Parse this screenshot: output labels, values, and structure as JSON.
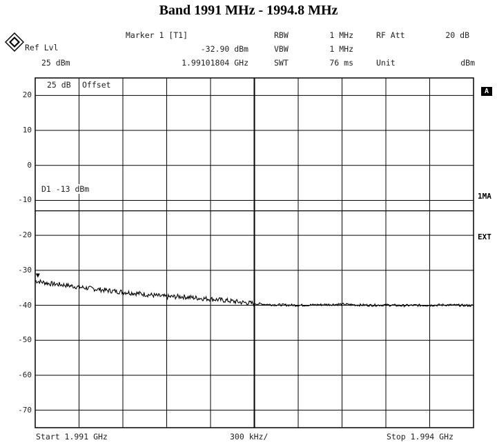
{
  "title": "Band 1991 MHz - 1994.8 MHz",
  "header": {
    "ref_lvl_label": "Ref Lvl",
    "ref_lvl_value": "25 dBm",
    "marker_label": "Marker 1 [T1]",
    "marker_level": "-32.90 dBm",
    "marker_freq": "1.99101804 GHz",
    "rbw_label": "RBW",
    "rbw_value": "1 MHz",
    "vbw_label": "VBW",
    "vbw_value": "1 MHz",
    "swt_label": "SWT",
    "swt_value": "76 ms",
    "rf_att_label": "RF Att",
    "rf_att_value": "20 dB",
    "unit_label": "Unit",
    "unit_value": "dBm"
  },
  "overlay": {
    "offset_value": "25 dB",
    "offset_label": "Offset",
    "limit_line_label": "D1 -13 dBm"
  },
  "side_labels": {
    "trace_a": "A",
    "mode": "1MA",
    "ext": "EXT"
  },
  "footer": {
    "start": "Start 1.991 GHz",
    "span_per_div": "300 kHz/",
    "stop": "Stop 1.994 GHz"
  },
  "colors": {
    "trace": "#000000",
    "grid": "#000000",
    "background": "#ffffff"
  },
  "chart_data": {
    "type": "line",
    "title": "Band 1991 MHz - 1994.8 MHz",
    "xlabel": "",
    "ylabel": "",
    "xlim": [
      1.991,
      1.994
    ],
    "ylim": [
      -75,
      25
    ],
    "y_ticks": [
      20,
      10,
      0,
      -10,
      -20,
      -30,
      -40,
      -50,
      -60,
      -70
    ],
    "grid": true,
    "limit_line": -13,
    "marker": {
      "x": 1.99101804,
      "y": -32.9
    },
    "series": [
      {
        "x": [
          1.991,
          1.9911,
          1.9912,
          1.9913,
          1.9914,
          1.9915,
          1.9916,
          1.9917,
          1.9918,
          1.9919,
          1.992,
          1.9921,
          1.9922,
          1.9923,
          1.9924,
          1.9925,
          1.9926,
          1.9927,
          1.9928,
          1.9929,
          1.993,
          1.9931,
          1.9932,
          1.9933,
          1.9934,
          1.9935,
          1.9936,
          1.9937,
          1.9938,
          1.9939,
          1.994
        ],
        "y": [
          -33.0,
          -33.8,
          -34.2,
          -34.8,
          -35.3,
          -35.8,
          -36.2,
          -36.6,
          -37.1,
          -37.6,
          -37.5,
          -37.9,
          -38.2,
          -38.6,
          -39.1,
          -39.5,
          -39.8,
          -39.9,
          -40.0,
          -39.9,
          -39.8,
          -39.7,
          -39.9,
          -40.0,
          -39.9,
          -40.1,
          -40.0,
          -40.0,
          -39.9,
          -40.0,
          -40.1
        ]
      }
    ]
  }
}
